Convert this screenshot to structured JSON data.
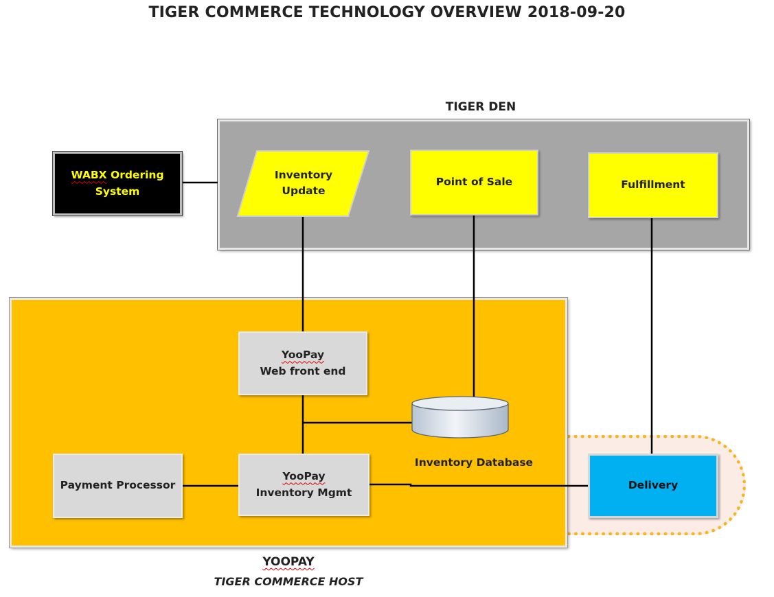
{
  "title": "TIGER COMMERCE TECHNOLOGY OVERVIEW 2018-09-20",
  "groups": {
    "tiger_den": {
      "label": "TIGER DEN"
    },
    "yoopay": {
      "label": "YOOPAY",
      "sublabel": "TIGER COMMERCE HOST"
    }
  },
  "nodes": {
    "wabx": {
      "line1": "WABX",
      "line1_rest": " Ordering",
      "line2": "System"
    },
    "inventory_update": {
      "line1": "Inventory",
      "line2": "Update"
    },
    "point_of_sale": {
      "label": "Point of Sale"
    },
    "fulfillment": {
      "label": "Fulfillment"
    },
    "web_front_end": {
      "line1": "YooPay",
      "line2": "Web front end"
    },
    "inventory_database": {
      "label": "Inventory Database"
    },
    "payment_processor": {
      "label": "Payment Processor"
    },
    "inventory_mgmt": {
      "line1": "YooPay",
      "line2": "Inventory Mgmt"
    },
    "delivery": {
      "label": "Delivery"
    }
  },
  "colors": {
    "den_fill": "#a6a6a6",
    "host_fill": "#ffc000",
    "process_fill": "#ffff00",
    "service_fill": "#d9d9d9",
    "external_fill": "#000000",
    "external_text": "#ffff00",
    "delivery_fill": "#00b0f0",
    "delivery_zone_border": "#f4b620",
    "delivery_zone_fill": "#fbece6"
  },
  "edges": [
    {
      "from": "WABX Ordering System",
      "to": "TIGER DEN"
    },
    {
      "from": "Inventory Update",
      "to": "YooPay Web front end"
    },
    {
      "from": "Point of Sale",
      "to": "Inventory Database"
    },
    {
      "from": "Fulfillment",
      "to": "Delivery"
    },
    {
      "from": "YooPay Web front end",
      "to": "YooPay Inventory Mgmt"
    },
    {
      "from": "YooPay Inventory Mgmt",
      "to": "Inventory Database"
    },
    {
      "from": "Payment Processor",
      "to": "YooPay Inventory Mgmt"
    },
    {
      "from": "YooPay Inventory Mgmt",
      "to": "Delivery"
    }
  ]
}
